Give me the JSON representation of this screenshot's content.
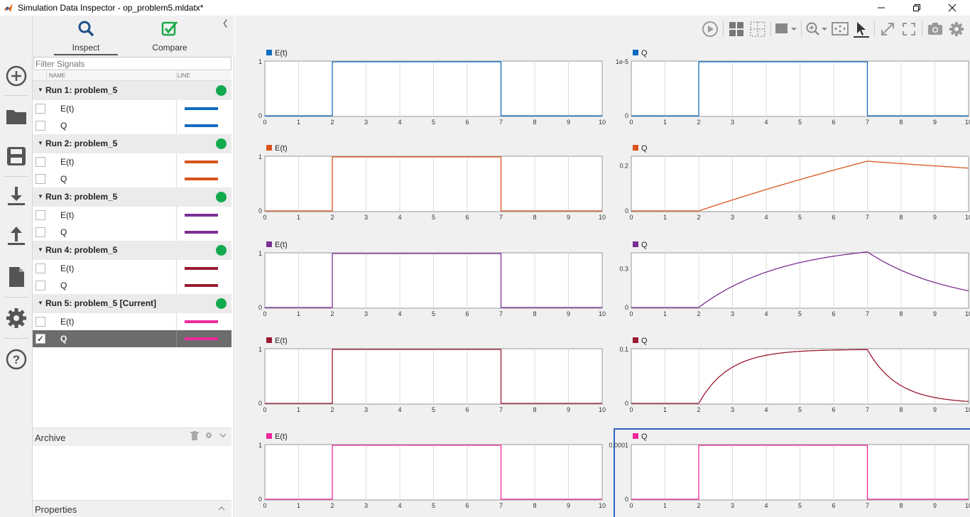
{
  "window": {
    "title": "Simulation Data Inspector - op_problem5.mldatx*"
  },
  "leftbar": [
    "new-icon",
    "open-folder-icon",
    "save-icon",
    "import-icon",
    "export-icon",
    "report-icon",
    "settings-icon",
    "help-icon"
  ],
  "tabs": {
    "inspect": "Inspect",
    "compare": "Compare"
  },
  "filter": {
    "placeholder": "Filter Signals"
  },
  "columns": {
    "name": "NAME",
    "line": "LINE"
  },
  "runs": [
    {
      "name": "Run 1: problem_5",
      "signals": [
        {
          "name": "E(t)",
          "color": "#0f6bbf",
          "checked": false
        },
        {
          "name": "Q",
          "color": "#0f6bbf",
          "checked": false
        }
      ]
    },
    {
      "name": "Run 2: problem_5",
      "signals": [
        {
          "name": "E(t)",
          "color": "#d9541e",
          "checked": false
        },
        {
          "name": "Q",
          "color": "#d9541e",
          "checked": false
        }
      ]
    },
    {
      "name": "Run 3: problem_5",
      "signals": [
        {
          "name": "E(t)",
          "color": "#7b2f93",
          "checked": false
        },
        {
          "name": "Q",
          "color": "#7b2f93",
          "checked": false
        }
      ]
    },
    {
      "name": "Run 4: problem_5",
      "signals": [
        {
          "name": "E(t)",
          "color": "#9a1b32",
          "checked": false
        },
        {
          "name": "Q",
          "color": "#9a1b32",
          "checked": false
        }
      ]
    },
    {
      "name": "Run 5: problem_5 [Current]",
      "signals": [
        {
          "name": "E(t)",
          "color": "#f0289a",
          "checked": false
        },
        {
          "name": "Q",
          "color": "#f0289a",
          "checked": true,
          "selected": true
        }
      ]
    }
  ],
  "archive": {
    "label": "Archive"
  },
  "properties": {
    "label": "Properties"
  },
  "toolbar": [
    "replay-icon",
    "layout-icon",
    "subplot-grid-icon",
    "plot-type-icon",
    "zoom-in-icon",
    "fit-to-view-icon",
    "cursor-icon",
    "expand-icon",
    "fullscreen-icon",
    "snapshot-icon",
    "settings-icon"
  ],
  "chart_data": [
    {
      "type": "line",
      "legend": "E(t)",
      "color": "#0f6bbf",
      "xlim": [
        0,
        10
      ],
      "ylim": [
        0,
        1
      ],
      "yticks": [
        "0",
        "1"
      ],
      "xticks": [
        0,
        1,
        2,
        3,
        4,
        5,
        6,
        7,
        8,
        9,
        10
      ],
      "shape": "pulse",
      "pulse": {
        "start": 2,
        "end": 7,
        "low": 0,
        "high": 1
      }
    },
    {
      "type": "line",
      "legend": "Q",
      "color": "#0f6bbf",
      "xlim": [
        0,
        10
      ],
      "ylim": [
        0,
        1e-05
      ],
      "yticks": [
        "0",
        "1e-5"
      ],
      "xticks": [
        0,
        1,
        2,
        3,
        4,
        5,
        6,
        7,
        8,
        9,
        10
      ],
      "shape": "pulse",
      "pulse": {
        "start": 2,
        "end": 7,
        "low": 0,
        "high": 1e-05
      }
    },
    {
      "type": "line",
      "legend": "E(t)",
      "color": "#d9541e",
      "xlim": [
        0,
        10
      ],
      "ylim": [
        0,
        1
      ],
      "yticks": [
        "0",
        "1"
      ],
      "xticks": [
        0,
        1,
        2,
        3,
        4,
        5,
        6,
        7,
        8,
        9,
        10
      ],
      "shape": "pulse",
      "pulse": {
        "start": 2,
        "end": 7,
        "low": 0,
        "high": 1
      }
    },
    {
      "type": "line",
      "legend": "Q",
      "color": "#d9541e",
      "xlim": [
        0,
        10
      ],
      "ylim": [
        0,
        0.24
      ],
      "yticks": [
        "0",
        "0.2"
      ],
      "ytickvals": [
        0,
        0.2
      ],
      "xticks": [
        0,
        1,
        2,
        3,
        4,
        5,
        6,
        7,
        8,
        9,
        10
      ],
      "shape": "rc",
      "rc": {
        "start": 2,
        "end": 7,
        "final": 1.0,
        "tau": 20
      }
    },
    {
      "type": "line",
      "legend": "E(t)",
      "color": "#7b2f93",
      "xlim": [
        0,
        10
      ],
      "ylim": [
        0,
        1
      ],
      "yticks": [
        "0",
        "1"
      ],
      "xticks": [
        0,
        1,
        2,
        3,
        4,
        5,
        6,
        7,
        8,
        9,
        10
      ],
      "shape": "pulse",
      "pulse": {
        "start": 2,
        "end": 7,
        "low": 0,
        "high": 1
      }
    },
    {
      "type": "line",
      "legend": "Q",
      "color": "#7b2f93",
      "xlim": [
        0,
        10
      ],
      "ylim": [
        0,
        0.42
      ],
      "yticks": [
        "0",
        "0.3"
      ],
      "ytickvals": [
        0,
        0.3
      ],
      "xticks": [
        0,
        1,
        2,
        3,
        4,
        5,
        6,
        7,
        8,
        9,
        10
      ],
      "shape": "rc",
      "rc": {
        "start": 2,
        "end": 7,
        "final": 0.5,
        "tau": 2.5
      }
    },
    {
      "type": "line",
      "legend": "E(t)",
      "color": "#9a1b32",
      "xlim": [
        0,
        10
      ],
      "ylim": [
        0,
        1
      ],
      "yticks": [
        "0",
        "1"
      ],
      "xticks": [
        0,
        1,
        2,
        3,
        4,
        5,
        6,
        7,
        8,
        9,
        10
      ],
      "shape": "pulse",
      "pulse": {
        "start": 2,
        "end": 7,
        "low": 0,
        "high": 1
      }
    },
    {
      "type": "line",
      "legend": "Q",
      "color": "#9a1b32",
      "xlim": [
        0,
        10
      ],
      "ylim": [
        0,
        0.1
      ],
      "yticks": [
        "0",
        "0.1"
      ],
      "xticks": [
        0,
        1,
        2,
        3,
        4,
        5,
        6,
        7,
        8,
        9,
        10
      ],
      "shape": "rc",
      "rc": {
        "start": 2,
        "end": 7,
        "final": 0.1,
        "tau": 0.9
      }
    },
    {
      "type": "line",
      "legend": "E(t)",
      "color": "#f0289a",
      "xlim": [
        0,
        10
      ],
      "ylim": [
        0,
        1
      ],
      "yticks": [
        "0",
        "1"
      ],
      "xticks": [
        0,
        1,
        2,
        3,
        4,
        5,
        6,
        7,
        8,
        9,
        10
      ],
      "shape": "pulse",
      "pulse": {
        "start": 2,
        "end": 7,
        "low": 0,
        "high": 1
      }
    },
    {
      "type": "line",
      "legend": "Q",
      "color": "#f0289a",
      "xlim": [
        0,
        10
      ],
      "ylim": [
        0,
        0.0001
      ],
      "yticks": [
        "0",
        "0.0001"
      ],
      "xticks": [
        0,
        1,
        2,
        3,
        4,
        5,
        6,
        7,
        8,
        9,
        10
      ],
      "shape": "pulse",
      "pulse": {
        "start": 2,
        "end": 7,
        "low": 0,
        "high": 0.0001
      },
      "selected": true
    }
  ]
}
